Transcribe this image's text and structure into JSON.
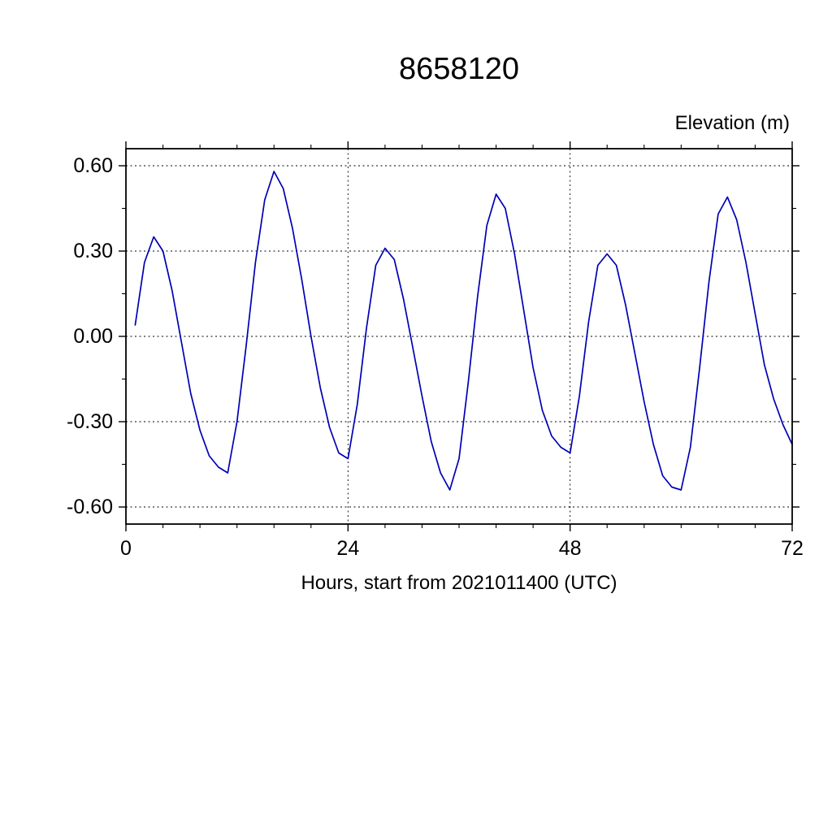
{
  "title": "8658120",
  "y_axis_title": "Elevation (m)",
  "x_axis_title": "Hours, start from 2021011400 (UTC)",
  "colors": {
    "line": "#0000b3",
    "axis": "#000000",
    "grid": "#000000",
    "background": "#ffffff"
  },
  "chart_data": {
    "type": "line",
    "title": "8658120",
    "ylabel": "Elevation (m)",
    "xlabel": "Hours, start from 2021011400 (UTC)",
    "xlim": [
      0,
      72
    ],
    "ylim": [
      -0.66,
      0.66
    ],
    "xticks": [
      0,
      24,
      48,
      72
    ],
    "yticks": [
      -0.6,
      -0.3,
      0.0,
      0.3,
      0.6
    ],
    "x_minor_step": 4,
    "y_minor_step": 0.15,
    "grid": true,
    "legend": false,
    "line_color": "#0000b3",
    "x": [
      1,
      2,
      3,
      4,
      5,
      6,
      7,
      8,
      9,
      10,
      11,
      12,
      13,
      14,
      15,
      16,
      17,
      18,
      19,
      20,
      21,
      22,
      23,
      24,
      25,
      26,
      27,
      28,
      29,
      30,
      31,
      32,
      33,
      34,
      35,
      36,
      37,
      38,
      39,
      40,
      41,
      42,
      43,
      44,
      45,
      46,
      47,
      48,
      49,
      50,
      51,
      52,
      53,
      54,
      55,
      56,
      57,
      58,
      59,
      60,
      61,
      62,
      63,
      64,
      65,
      66,
      67,
      68,
      69,
      70,
      71,
      72
    ],
    "y": [
      0.04,
      0.26,
      0.35,
      0.3,
      0.16,
      -0.02,
      -0.2,
      -0.33,
      -0.42,
      -0.46,
      -0.48,
      -0.3,
      -0.03,
      0.26,
      0.48,
      0.58,
      0.52,
      0.38,
      0.2,
      0.0,
      -0.18,
      -0.32,
      -0.41,
      -0.43,
      -0.24,
      0.03,
      0.25,
      0.31,
      0.27,
      0.13,
      -0.04,
      -0.21,
      -0.37,
      -0.48,
      -0.54,
      -0.43,
      -0.16,
      0.14,
      0.39,
      0.5,
      0.45,
      0.29,
      0.09,
      -0.11,
      -0.26,
      -0.35,
      -0.39,
      -0.41,
      -0.21,
      0.05,
      0.25,
      0.29,
      0.25,
      0.11,
      -0.06,
      -0.23,
      -0.38,
      -0.49,
      -0.53,
      -0.54,
      -0.39,
      -0.11,
      0.19,
      0.43,
      0.49,
      0.41,
      0.26,
      0.08,
      -0.1,
      -0.22,
      -0.31,
      -0.38
    ]
  }
}
